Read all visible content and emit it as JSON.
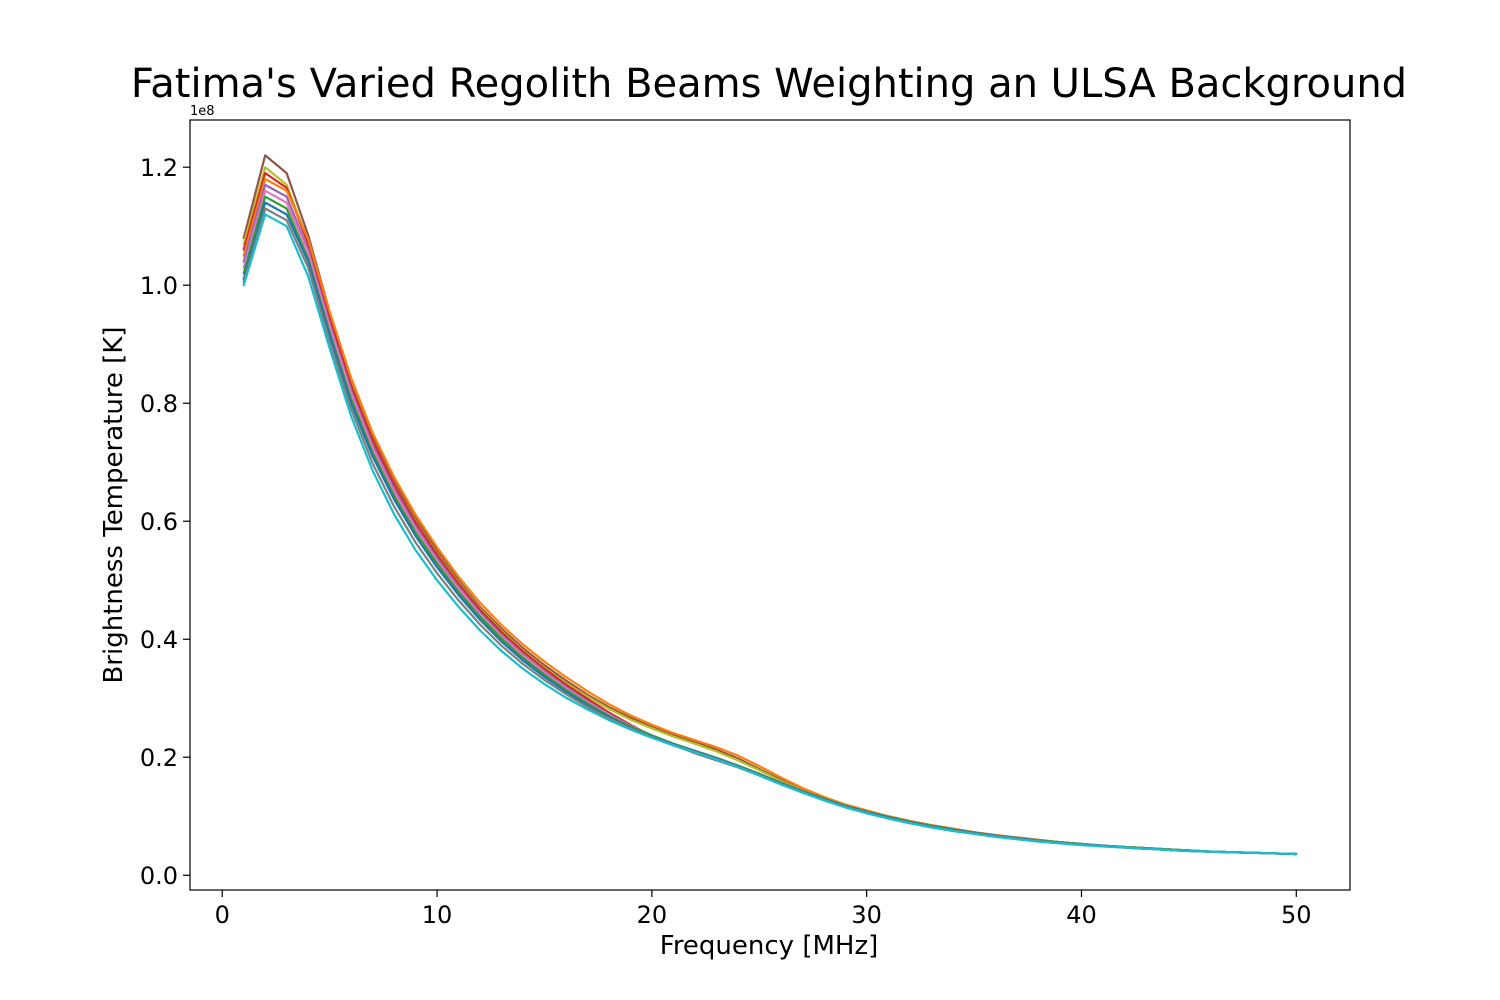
{
  "chart_data": {
    "type": "line",
    "title": "Fatima's Varied Regolith Beams Weighting an ULSA Background",
    "xlabel": "Frequency [MHz]",
    "ylabel": "Brightness Temperature [K]",
    "y_offset_label": "1e8",
    "y_scale": 100000000,
    "xlim": [
      -1.5,
      52.5
    ],
    "ylim": [
      -0.025,
      1.28
    ],
    "x_ticks": [
      0,
      10,
      20,
      30,
      40,
      50
    ],
    "x_tick_labels": [
      "0",
      "10",
      "20",
      "30",
      "40",
      "50"
    ],
    "y_ticks": [
      0.0,
      0.2,
      0.4,
      0.6,
      0.8,
      1.0,
      1.2
    ],
    "y_tick_labels": [
      "0.0",
      "0.2",
      "0.4",
      "0.6",
      "0.8",
      "1.0",
      "1.2"
    ],
    "grid": false,
    "legend": "none",
    "x": [
      1,
      2,
      3,
      4,
      5,
      6,
      7,
      8,
      9,
      10,
      11,
      12,
      13,
      14,
      15,
      16,
      17,
      18,
      19,
      20,
      21,
      22,
      23,
      24,
      25,
      26,
      27,
      28,
      29,
      30,
      31,
      32,
      33,
      34,
      35,
      36,
      37,
      38,
      39,
      40,
      41,
      42,
      43,
      44,
      45,
      46,
      47,
      48,
      49,
      50
    ],
    "series": [
      {
        "values": [
          1.08,
          1.22,
          1.19,
          1.085,
          0.955,
          0.84,
          0.745,
          0.67,
          0.605,
          0.55,
          0.5,
          0.455,
          0.418,
          0.385,
          0.356,
          0.33,
          0.306,
          0.285,
          0.267,
          0.252,
          0.238,
          0.226,
          0.213,
          0.198,
          0.18,
          0.162,
          0.145,
          0.131,
          0.119,
          0.109,
          0.1,
          0.092,
          0.085,
          0.079,
          0.073,
          0.068,
          0.064,
          0.06,
          0.056,
          0.053,
          0.05,
          0.048,
          0.046,
          0.044,
          0.042,
          0.04,
          0.039,
          0.038,
          0.037,
          0.036
        ],
        "color": "#8c564b"
      },
      {
        "values": [
          1.07,
          1.2,
          1.17,
          1.075,
          0.948,
          0.832,
          0.738,
          0.663,
          0.6,
          0.545,
          0.496,
          0.452,
          0.414,
          0.381,
          0.352,
          0.326,
          0.303,
          0.282,
          0.264,
          0.249,
          0.235,
          0.223,
          0.21,
          0.195,
          0.178,
          0.16,
          0.144,
          0.13,
          0.118,
          0.108,
          0.099,
          0.091,
          0.084,
          0.078,
          0.072,
          0.067,
          0.063,
          0.059,
          0.056,
          0.053,
          0.05,
          0.048,
          0.046,
          0.044,
          0.042,
          0.04,
          0.039,
          0.038,
          0.037,
          0.036
        ],
        "color": "#bcbd22"
      },
      {
        "values": [
          1.06,
          1.19,
          1.165,
          1.07,
          0.945,
          0.83,
          0.737,
          0.662,
          0.598,
          0.543,
          0.494,
          0.45,
          0.412,
          0.379,
          0.35,
          0.323,
          0.299,
          0.276,
          0.255,
          0.236,
          0.221,
          0.207,
          0.195,
          0.183,
          0.17,
          0.156,
          0.142,
          0.129,
          0.118,
          0.108,
          0.099,
          0.091,
          0.084,
          0.078,
          0.072,
          0.067,
          0.063,
          0.059,
          0.056,
          0.053,
          0.05,
          0.048,
          0.046,
          0.044,
          0.042,
          0.04,
          0.039,
          0.038,
          0.037,
          0.036
        ],
        "color": "#d62728"
      },
      {
        "values": [
          1.05,
          1.18,
          1.16,
          1.078,
          0.955,
          0.843,
          0.75,
          0.675,
          0.611,
          0.556,
          0.506,
          0.462,
          0.424,
          0.391,
          0.362,
          0.336,
          0.312,
          0.29,
          0.271,
          0.255,
          0.241,
          0.229,
          0.217,
          0.203,
          0.185,
          0.166,
          0.148,
          0.133,
          0.12,
          0.11,
          0.1,
          0.092,
          0.085,
          0.079,
          0.073,
          0.068,
          0.064,
          0.06,
          0.056,
          0.053,
          0.05,
          0.048,
          0.046,
          0.044,
          0.042,
          0.04,
          0.039,
          0.038,
          0.037,
          0.036
        ],
        "color": "#ff7f0e"
      },
      {
        "values": [
          1.04,
          1.17,
          1.15,
          1.06,
          0.935,
          0.822,
          0.729,
          0.655,
          0.591,
          0.537,
          0.488,
          0.445,
          0.407,
          0.374,
          0.345,
          0.319,
          0.295,
          0.273,
          0.253,
          0.236,
          0.222,
          0.209,
          0.196,
          0.183,
          0.169,
          0.155,
          0.141,
          0.128,
          0.117,
          0.107,
          0.098,
          0.09,
          0.083,
          0.077,
          0.072,
          0.067,
          0.063,
          0.059,
          0.055,
          0.052,
          0.05,
          0.047,
          0.045,
          0.043,
          0.041,
          0.04,
          0.039,
          0.038,
          0.037,
          0.036
        ],
        "color": "#9467bd"
      },
      {
        "values": [
          1.03,
          1.16,
          1.14,
          1.055,
          0.93,
          0.816,
          0.724,
          0.65,
          0.587,
          0.533,
          0.485,
          0.442,
          0.405,
          0.372,
          0.343,
          0.317,
          0.293,
          0.272,
          0.253,
          0.237,
          0.223,
          0.211,
          0.199,
          0.186,
          0.172,
          0.157,
          0.143,
          0.13,
          0.118,
          0.108,
          0.099,
          0.091,
          0.084,
          0.078,
          0.072,
          0.067,
          0.063,
          0.059,
          0.056,
          0.053,
          0.05,
          0.048,
          0.046,
          0.044,
          0.042,
          0.04,
          0.039,
          0.038,
          0.037,
          0.036
        ],
        "color": "#e377c2"
      },
      {
        "values": [
          1.02,
          1.15,
          1.13,
          1.045,
          0.92,
          0.807,
          0.716,
          0.643,
          0.581,
          0.528,
          0.48,
          0.438,
          0.401,
          0.368,
          0.34,
          0.314,
          0.291,
          0.27,
          0.252,
          0.237,
          0.223,
          0.211,
          0.199,
          0.186,
          0.172,
          0.157,
          0.143,
          0.13,
          0.118,
          0.108,
          0.099,
          0.091,
          0.084,
          0.078,
          0.072,
          0.067,
          0.063,
          0.059,
          0.056,
          0.053,
          0.05,
          0.048,
          0.046,
          0.044,
          0.042,
          0.04,
          0.039,
          0.038,
          0.037,
          0.036
        ],
        "color": "#2ca02c"
      },
      {
        "values": [
          1.01,
          1.14,
          1.12,
          1.04,
          0.915,
          0.8,
          0.71,
          0.637,
          0.575,
          0.522,
          0.475,
          0.433,
          0.396,
          0.364,
          0.336,
          0.311,
          0.288,
          0.268,
          0.25,
          0.235,
          0.222,
          0.21,
          0.198,
          0.185,
          0.171,
          0.156,
          0.142,
          0.129,
          0.117,
          0.107,
          0.098,
          0.09,
          0.083,
          0.077,
          0.072,
          0.067,
          0.063,
          0.059,
          0.055,
          0.052,
          0.05,
          0.047,
          0.045,
          0.043,
          0.041,
          0.04,
          0.039,
          0.038,
          0.037,
          0.036
        ],
        "color": "#1f77b4"
      },
      {
        "values": [
          1.005,
          1.13,
          1.11,
          1.03,
          0.905,
          0.79,
          0.698,
          0.625,
          0.564,
          0.512,
          0.466,
          0.425,
          0.389,
          0.358,
          0.331,
          0.307,
          0.285,
          0.266,
          0.249,
          0.234,
          0.221,
          0.209,
          0.197,
          0.184,
          0.17,
          0.155,
          0.141,
          0.128,
          0.116,
          0.106,
          0.097,
          0.089,
          0.082,
          0.076,
          0.071,
          0.066,
          0.062,
          0.058,
          0.055,
          0.052,
          0.049,
          0.047,
          0.045,
          0.043,
          0.041,
          0.04,
          0.039,
          0.038,
          0.037,
          0.036
        ],
        "color": "#7f7f7f"
      },
      {
        "values": [
          1.0,
          1.12,
          1.1,
          1.015,
          0.893,
          0.778,
          0.686,
          0.612,
          0.551,
          0.5,
          0.455,
          0.415,
          0.38,
          0.35,
          0.324,
          0.301,
          0.281,
          0.263,
          0.247,
          0.233,
          0.22,
          0.208,
          0.196,
          0.183,
          0.169,
          0.154,
          0.14,
          0.127,
          0.115,
          0.105,
          0.096,
          0.088,
          0.081,
          0.075,
          0.07,
          0.065,
          0.061,
          0.057,
          0.054,
          0.051,
          0.049,
          0.047,
          0.045,
          0.043,
          0.041,
          0.04,
          0.039,
          0.038,
          0.037,
          0.036
        ],
        "color": "#17becf"
      }
    ]
  }
}
